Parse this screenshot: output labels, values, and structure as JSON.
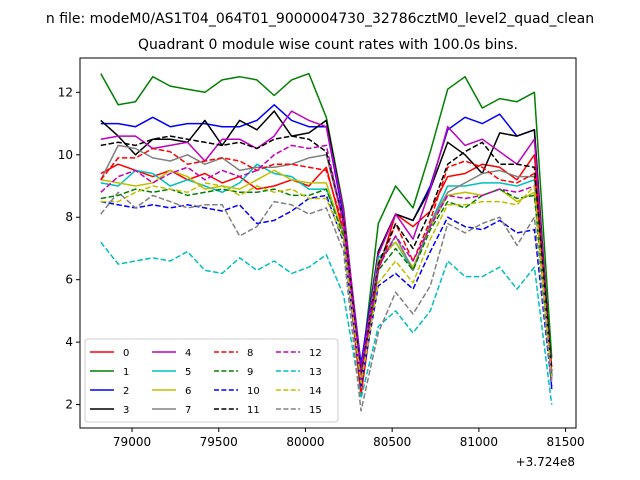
{
  "chart_data": {
    "type": "line",
    "suptitle": "n file: modeM0/AS1T04_064T01_9000004730_32786cztM0_level2_quad_clean",
    "title": "Quadrant 0 module wise count rates with 100.0s bins.",
    "xlabel": "",
    "ylabel": "",
    "offset_label": "+3.724e8",
    "xlim": [
      78700,
      81560
    ],
    "ylim": [
      1.25,
      13.1
    ],
    "xticks": [
      79000,
      79500,
      80000,
      80500,
      81000,
      81500
    ],
    "yticks": [
      2,
      4,
      6,
      8,
      10,
      12
    ],
    "legend_position": "lower-left",
    "x": [
      78820,
      78920,
      79020,
      79120,
      79220,
      79320,
      79420,
      79520,
      79620,
      79720,
      79820,
      79920,
      80020,
      80120,
      80220,
      80320,
      80420,
      80520,
      80620,
      80720,
      80820,
      80920,
      81020,
      81120,
      81220,
      81320,
      81420
    ],
    "series": [
      {
        "name": "0",
        "color": "#ff0000",
        "dash": "solid",
        "values": [
          9.4,
          9.7,
          9.5,
          9.3,
          9.5,
          9.2,
          9.4,
          9.1,
          9.3,
          8.9,
          9.0,
          9.2,
          9.0,
          9.6,
          7.5,
          2.3,
          6.3,
          8.1,
          7.7,
          8.2,
          9.3,
          9.4,
          9.7,
          9.6,
          9.2,
          10.0,
          3.2
        ]
      },
      {
        "name": "1",
        "color": "#008000",
        "dash": "solid",
        "values": [
          12.6,
          11.6,
          11.7,
          12.5,
          12.2,
          12.1,
          12.0,
          12.4,
          12.5,
          12.4,
          11.9,
          12.4,
          12.6,
          11.2,
          8.3,
          3.0,
          7.8,
          9.0,
          8.3,
          10.1,
          12.1,
          12.5,
          11.5,
          11.8,
          11.7,
          12.0,
          3.5
        ]
      },
      {
        "name": "2",
        "color": "#0000ff",
        "dash": "solid",
        "values": [
          11.0,
          11.0,
          10.9,
          11.2,
          10.9,
          11.0,
          11.0,
          10.9,
          10.9,
          11.1,
          11.6,
          11.1,
          10.9,
          10.9,
          8.0,
          3.3,
          6.9,
          8.1,
          7.9,
          9.0,
          10.8,
          11.2,
          11.0,
          11.3,
          10.6,
          10.8,
          2.5
        ]
      },
      {
        "name": "3",
        "color": "#000000",
        "dash": "solid",
        "values": [
          11.1,
          10.6,
          10.0,
          10.5,
          10.5,
          10.4,
          11.1,
          10.3,
          11.1,
          10.8,
          11.4,
          10.6,
          10.7,
          11.1,
          8.2,
          3.0,
          6.9,
          8.1,
          7.9,
          8.9,
          10.4,
          10.0,
          9.4,
          10.7,
          10.6,
          10.8,
          2.9
        ]
      },
      {
        "name": "4",
        "color": "#bf00bf",
        "dash": "solid",
        "values": [
          10.5,
          10.6,
          10.6,
          10.2,
          10.3,
          10.4,
          9.8,
          10.5,
          10.5,
          10.2,
          10.6,
          11.4,
          11.1,
          10.9,
          8.2,
          3.1,
          6.8,
          8.1,
          7.3,
          8.9,
          10.9,
          10.3,
          10.5,
          10.1,
          9.7,
          10.5,
          2.8
        ]
      },
      {
        "name": "5",
        "color": "#00bfbf",
        "dash": "solid",
        "values": [
          9.1,
          9.0,
          9.5,
          9.4,
          9.0,
          9.2,
          9.0,
          8.8,
          9.1,
          9.7,
          9.4,
          9.3,
          8.9,
          8.9,
          7.5,
          2.7,
          6.7,
          7.2,
          6.3,
          7.8,
          9.0,
          9.0,
          9.1,
          9.1,
          9.0,
          9.2,
          3.0
        ]
      },
      {
        "name": "6",
        "color": "#bfbf00",
        "dash": "solid",
        "values": [
          9.2,
          9.1,
          9.0,
          9.1,
          9.5,
          9.3,
          8.9,
          9.0,
          8.9,
          9.2,
          9.5,
          9.2,
          9.1,
          9.1,
          7.4,
          2.8,
          6.6,
          7.2,
          6.4,
          7.7,
          8.7,
          8.8,
          8.7,
          8.9,
          8.5,
          8.8,
          3.0
        ]
      },
      {
        "name": "7",
        "color": "#808080",
        "dash": "solid",
        "values": [
          9.2,
          10.3,
          10.2,
          9.9,
          9.8,
          10.0,
          9.7,
          9.9,
          9.5,
          9.6,
          9.6,
          9.7,
          9.9,
          10.0,
          7.8,
          2.8,
          6.5,
          7.4,
          6.3,
          7.8,
          8.8,
          9.1,
          9.4,
          9.5,
          9.3,
          9.3,
          3.0
        ]
      },
      {
        "name": "8",
        "color": "#ff0000",
        "dash": "dashed",
        "values": [
          9.2,
          9.9,
          9.9,
          10.2,
          10.1,
          9.7,
          9.8,
          9.9,
          9.8,
          9.5,
          9.7,
          9.7,
          9.6,
          9.5,
          7.7,
          2.8,
          6.3,
          7.8,
          6.6,
          7.9,
          9.6,
          9.8,
          9.6,
          9.2,
          9.1,
          9.4,
          3.0
        ]
      },
      {
        "name": "9",
        "color": "#008000",
        "dash": "dashed",
        "values": [
          8.6,
          8.7,
          8.9,
          8.8,
          8.9,
          8.7,
          8.8,
          8.9,
          8.8,
          8.8,
          8.9,
          8.7,
          8.7,
          8.9,
          7.4,
          2.7,
          6.3,
          7.0,
          6.3,
          7.6,
          8.5,
          8.3,
          8.7,
          8.9,
          8.6,
          8.7,
          2.9
        ]
      },
      {
        "name": "10",
        "color": "#0000ff",
        "dash": "dashed",
        "values": [
          8.5,
          8.4,
          8.3,
          8.4,
          8.3,
          8.4,
          8.3,
          8.2,
          8.4,
          7.8,
          7.9,
          8.2,
          8.6,
          8.7,
          7.2,
          2.6,
          5.8,
          6.2,
          5.7,
          6.9,
          8.0,
          7.7,
          7.6,
          7.9,
          7.5,
          7.6,
          2.6
        ]
      },
      {
        "name": "11",
        "color": "#000000",
        "dash": "dashed",
        "values": [
          10.3,
          10.4,
          10.3,
          10.5,
          10.6,
          10.5,
          10.4,
          10.3,
          10.4,
          10.2,
          10.5,
          10.6,
          10.5,
          10.1,
          7.9,
          2.9,
          6.5,
          7.8,
          7.0,
          8.2,
          9.7,
          10.1,
          10.4,
          9.7,
          9.7,
          9.6,
          3.1
        ]
      },
      {
        "name": "12",
        "color": "#bf00bf",
        "dash": "dashed",
        "values": [
          8.8,
          9.3,
          9.5,
          9.1,
          9.4,
          9.6,
          9.2,
          9.5,
          9.3,
          9.5,
          10.0,
          10.3,
          10.2,
          10.3,
          7.8,
          2.8,
          6.4,
          7.4,
          6.6,
          7.7,
          8.7,
          8.6,
          8.7,
          8.9,
          8.8,
          9.0,
          3.0
        ]
      },
      {
        "name": "13",
        "color": "#00bfbf",
        "dash": "dashed",
        "values": [
          7.2,
          6.5,
          6.6,
          6.7,
          6.6,
          6.9,
          6.3,
          6.2,
          6.7,
          6.3,
          6.6,
          6.2,
          6.4,
          6.8,
          5.5,
          2.2,
          4.5,
          5.0,
          4.3,
          5.0,
          6.6,
          6.1,
          6.1,
          6.4,
          5.7,
          6.4,
          2.0
        ]
      },
      {
        "name": "14",
        "color": "#bfbf00",
        "dash": "dashed",
        "values": [
          8.5,
          8.5,
          8.8,
          9.0,
          8.9,
          8.8,
          9.1,
          9.0,
          8.7,
          9.0,
          8.8,
          8.9,
          8.6,
          8.6,
          7.3,
          2.7,
          5.9,
          6.6,
          5.9,
          7.3,
          8.4,
          8.4,
          8.5,
          8.5,
          8.4,
          9.0,
          2.8
        ]
      },
      {
        "name": "15",
        "color": "#808080",
        "dash": "dashed",
        "values": [
          8.1,
          8.8,
          8.3,
          8.7,
          8.5,
          8.3,
          8.4,
          8.4,
          7.4,
          7.7,
          8.5,
          8.4,
          8.1,
          8.3,
          6.9,
          1.8,
          4.3,
          5.6,
          4.9,
          5.8,
          7.8,
          7.5,
          7.8,
          8.0,
          7.1,
          8.0,
          2.7
        ]
      }
    ]
  }
}
